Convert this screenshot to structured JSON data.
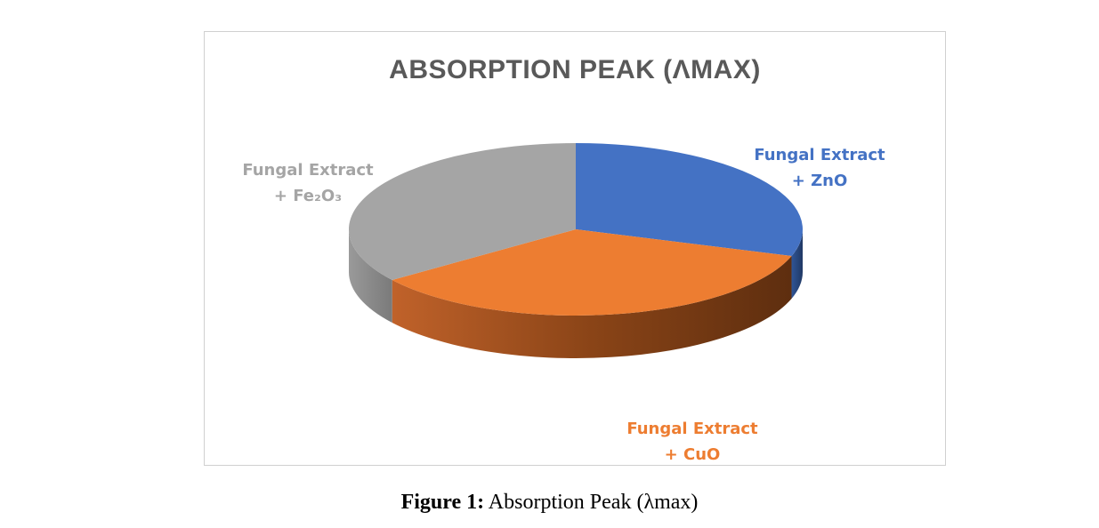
{
  "chart_data": {
    "type": "pie",
    "style": "3d",
    "title": "ABSORPTION PEAK (ΛMAX)",
    "labels": [
      {
        "line1": "Fungal Extract",
        "line2": "+ ZnO",
        "color": "#4472c4",
        "position": "top-right"
      },
      {
        "line1": "Fungal Extract",
        "line2": "+ CuO",
        "color": "#ed7d31",
        "position": "bottom-right"
      },
      {
        "line1": "Fungal Extract",
        "line2": "+ Fe₂O₃",
        "color": "#a5a5a5",
        "position": "top-left"
      }
    ],
    "values": [
      0.3,
      0.35,
      0.35
    ],
    "legend": "none"
  },
  "caption": {
    "prefix": "Figure 1:",
    "text": " Absorption Peak (λmax)"
  }
}
